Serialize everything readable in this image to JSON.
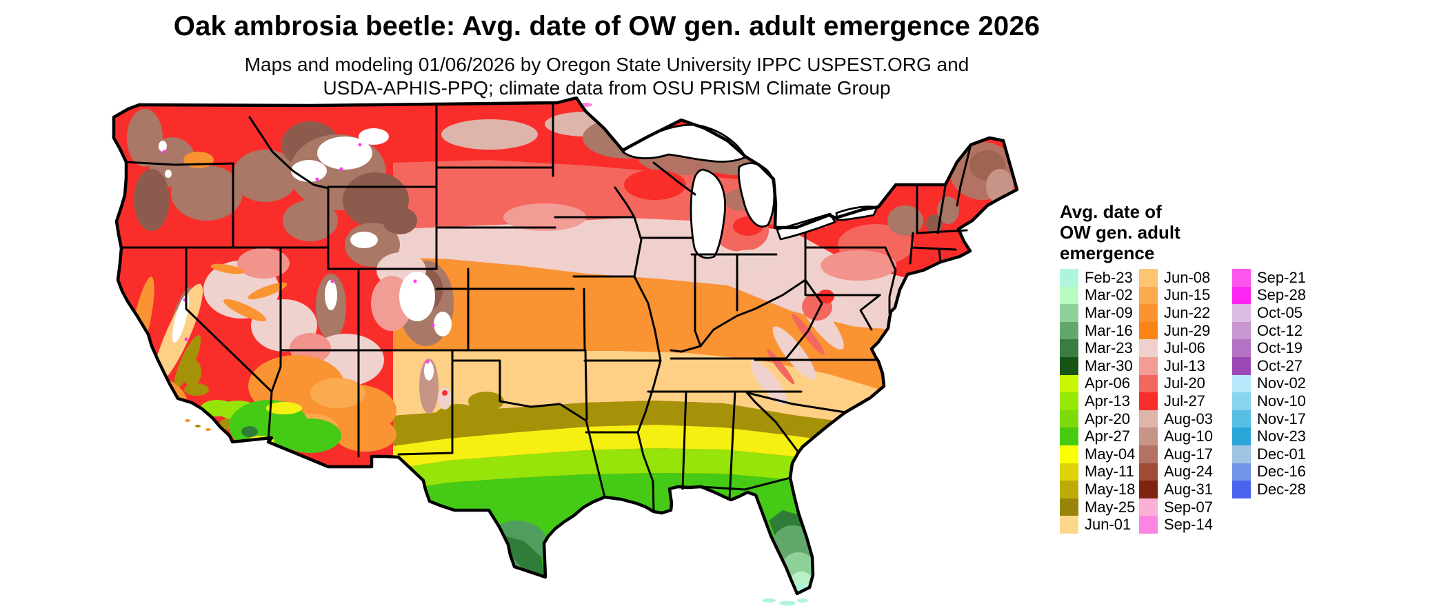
{
  "title": "Oak ambrosia beetle: Avg. date of OW gen. adult emergence 2026",
  "subtitle": {
    "line1": "Maps and modeling 01/06/2026 by Oregon State University IPPC USPEST.ORG and",
    "line2": "USDA-APHIS-PPQ; climate data from OSU PRISM Climate Group"
  },
  "legend": {
    "title_lines": [
      "Avg. date of",
      "OW gen. adult",
      "emergence"
    ],
    "columns": [
      [
        {
          "label": "Feb-23",
          "color": "#aef5dc"
        },
        {
          "label": "Mar-02",
          "color": "#b8fbc0"
        },
        {
          "label": "Mar-09",
          "color": "#8ed29a"
        },
        {
          "label": "Mar-16",
          "color": "#63a86b"
        },
        {
          "label": "Mar-23",
          "color": "#3b7d40"
        },
        {
          "label": "Mar-30",
          "color": "#185214"
        },
        {
          "label": "Apr-06",
          "color": "#c8f502"
        },
        {
          "label": "Apr-13",
          "color": "#97e706"
        },
        {
          "label": "Apr-20",
          "color": "#7cdb09"
        },
        {
          "label": "Apr-27",
          "color": "#47cb10"
        },
        {
          "label": "May-04",
          "color": "#fcfe04"
        },
        {
          "label": "May-11",
          "color": "#dcd405"
        },
        {
          "label": "May-18",
          "color": "#bcad06"
        },
        {
          "label": "May-25",
          "color": "#988408"
        },
        {
          "label": "Jun-01",
          "color": "#fdd88c"
        }
      ],
      [
        {
          "label": "Jun-08",
          "color": "#fdc472"
        },
        {
          "label": "Jun-15",
          "color": "#fbaa50"
        },
        {
          "label": "Jun-22",
          "color": "#fb9331"
        },
        {
          "label": "Jun-29",
          "color": "#fa8416"
        },
        {
          "label": "Jul-06",
          "color": "#f0d0cc"
        },
        {
          "label": "Jul-13",
          "color": "#f29c96"
        },
        {
          "label": "Jul-20",
          "color": "#f4675f"
        },
        {
          "label": "Jul-27",
          "color": "#f92e2b"
        },
        {
          "label": "Aug-03",
          "color": "#ddb5ab"
        },
        {
          "label": "Aug-10",
          "color": "#c69588"
        },
        {
          "label": "Aug-17",
          "color": "#b37263"
        },
        {
          "label": "Aug-24",
          "color": "#a04a38"
        },
        {
          "label": "Aug-31",
          "color": "#7c2410"
        },
        {
          "label": "Sep-07",
          "color": "#fbb1d5"
        },
        {
          "label": "Sep-14",
          "color": "#fc85e3"
        }
      ],
      [
        {
          "label": "Sep-21",
          "color": "#fd55ec"
        },
        {
          "label": "Sep-28",
          "color": "#fc25f1"
        },
        {
          "label": "Oct-05",
          "color": "#dcbce4"
        },
        {
          "label": "Oct-12",
          "color": "#c897d2"
        },
        {
          "label": "Oct-19",
          "color": "#b472c4"
        },
        {
          "label": "Oct-27",
          "color": "#9c48b4"
        },
        {
          "label": "Nov-02",
          "color": "#b8e8fb"
        },
        {
          "label": "Nov-10",
          "color": "#87d3f0"
        },
        {
          "label": "Nov-17",
          "color": "#57bee4"
        },
        {
          "label": "Nov-23",
          "color": "#2aa5d8"
        },
        {
          "label": "Dec-01",
          "color": "#9fc4e4"
        },
        {
          "label": "Dec-16",
          "color": "#7295ea"
        },
        {
          "label": "Dec-28",
          "color": "#4b63ef"
        }
      ]
    ]
  },
  "map": {
    "region": "Contiguous United States",
    "background_color": "#ffffff",
    "boundary_color": "#000000",
    "no_data_color": "#ffffff"
  },
  "chart_data": {
    "type": "choropleth_map",
    "title": "Oak ambrosia beetle: Avg. date of OW gen. adult emergence 2026",
    "region": "Contiguous United States",
    "legend_position": "right",
    "categories": [
      "Feb-23",
      "Mar-02",
      "Mar-09",
      "Mar-16",
      "Mar-23",
      "Mar-30",
      "Apr-06",
      "Apr-13",
      "Apr-20",
      "Apr-27",
      "May-04",
      "May-11",
      "May-18",
      "May-25",
      "Jun-01",
      "Jun-08",
      "Jun-15",
      "Jun-22",
      "Jun-29",
      "Jul-06",
      "Jul-13",
      "Jul-20",
      "Jul-27",
      "Aug-03",
      "Aug-10",
      "Aug-17",
      "Aug-24",
      "Aug-31",
      "Sep-07",
      "Sep-14",
      "Sep-21",
      "Sep-28",
      "Oct-05",
      "Oct-12",
      "Oct-19",
      "Oct-27",
      "Nov-02",
      "Nov-10",
      "Nov-17",
      "Nov-23",
      "Dec-01",
      "Dec-16",
      "Dec-28"
    ],
    "colors": [
      "#aef5dc",
      "#b8fbc0",
      "#8ed29a",
      "#63a86b",
      "#3b7d40",
      "#185214",
      "#c8f502",
      "#97e706",
      "#7cdb09",
      "#47cb10",
      "#fcfe04",
      "#dcd405",
      "#bcad06",
      "#988408",
      "#fdd88c",
      "#fdc472",
      "#fbaa50",
      "#fb9331",
      "#fa8416",
      "#f0d0cc",
      "#f29c96",
      "#f4675f",
      "#f92e2b",
      "#ddb5ab",
      "#c69588",
      "#b37263",
      "#a04a38",
      "#7c2410",
      "#fbb1d5",
      "#fc85e3",
      "#fd55ec",
      "#fc25f1",
      "#dcbce4",
      "#c897d2",
      "#b472c4",
      "#9c48b4",
      "#b8e8fb",
      "#87d3f0",
      "#57bee4",
      "#2aa5d8",
      "#9fc4e4",
      "#7295ea",
      "#4b63ef"
    ]
  }
}
